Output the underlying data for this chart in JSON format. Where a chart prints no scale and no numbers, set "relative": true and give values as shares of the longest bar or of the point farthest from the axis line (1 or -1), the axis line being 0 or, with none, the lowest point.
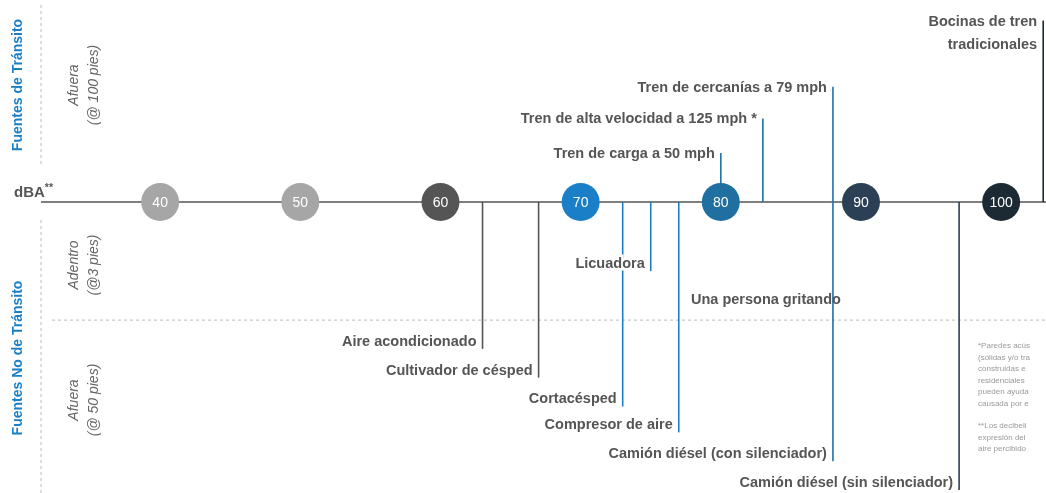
{
  "chart_data": {
    "type": "bar",
    "relative": true,
    "xlabel": "dBA$^{**}$",
    "ref_lines": [
      {
        "axis": "y",
        "value": -0.41,
        "color": "#bbbbbb",
        "line_style": "dashed"
      }
    ],
    "xlim": [
      31.5,
      103.2
    ],
    "xticks": [
      40,
      50,
      60,
      70,
      80,
      90,
      100
    ],
    "series": [
      {
        "x": [
          80,
          83,
          88,
          103
        ],
        "values": [
          0.17,
          0.29,
          0.4,
          0.63
        ],
        "colors": [
          "#1f72a8",
          "#1f72a8",
          "#1f72a8",
          "#1c2a33"
        ]
      },
      {
        "x": [
          63,
          67,
          73,
          75,
          77,
          88,
          97
        ],
        "values": [
          -0.51,
          -0.61,
          -0.71,
          -0.24,
          -0.8,
          -0.9,
          -1
        ],
        "colors": [
          "#555555",
          "#555555",
          "#1a7fc7",
          "#1a7fc7",
          "#1a7fc7",
          "#1f72a8",
          "#2b4055"
        ]
      }
    ],
    "annotations": [
      {
        "text": "Tren de carga a 50 mph",
        "x": 80,
        "y": 0.17
      },
      {
        "text": "Tren de alta velocidad a 125 mph *",
        "x": 83,
        "y": 0.29
      },
      {
        "text": "Tren de cercanías a 79 mph",
        "x": 88,
        "y": 0.4
      },
      {
        "text": "Bocinas de tren\ntradicionales",
        "x": 103,
        "y": 0.63
      },
      {
        "text": "Aire acondicionado",
        "x": 63,
        "y": -0.51
      },
      {
        "text": "Cultivador de césped",
        "x": 67,
        "y": -0.61
      },
      {
        "text": "Cortacésped",
        "x": 73,
        "y": -0.71
      },
      {
        "text": "Licuadora",
        "x": 75,
        "y": -0.24
      },
      {
        "text": "Compresor de aire",
        "x": 77,
        "y": -0.8
      },
      {
        "text": "Camión diésel (con silenciador)",
        "x": 88,
        "y": -0.9
      },
      {
        "text": "Camión diésel (sin silenciador)",
        "x": 97,
        "y": -1
      },
      "Fuentes de Tránsito",
      "Fuentes No de Tránsito",
      "Afuera\n(@ 100 pies)",
      "Adentro\n(@3 pies)",
      "Afuera\n(@ 50 pies)",
      "*Paredes acús\n(sólidas y/o tra\nconstruidas e\nresidenciales\npueden ayuda\ncausada por e",
      "**Los decibeli\nexpresión del\naire percibido",
      "Una persona gritando"
    ]
  }
}
